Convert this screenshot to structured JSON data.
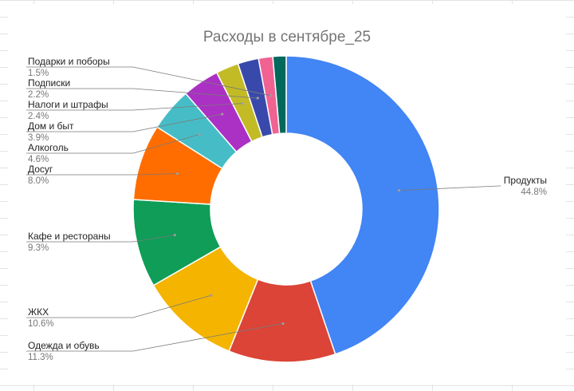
{
  "chart_data": {
    "type": "pie",
    "variant": "donut",
    "title": "Расходы в сентябре_25",
    "legend": "none",
    "slices": [
      {
        "label": "Продукты",
        "value": 44.8,
        "percent_label": "44.8%",
        "color": "#4285f4"
      },
      {
        "label": "Одежда и обувь",
        "value": 11.3,
        "percent_label": "11.3%",
        "color": "#db4437"
      },
      {
        "label": "ЖКХ",
        "value": 10.6,
        "percent_label": "10.6%",
        "color": "#f4b400"
      },
      {
        "label": "Кафе и рестораны",
        "value": 9.3,
        "percent_label": "9.3%",
        "color": "#0f9d58"
      },
      {
        "label": "Досуг",
        "value": 8.0,
        "percent_label": "8.0%",
        "color": "#ff6d01"
      },
      {
        "label": "Алкоголь",
        "value": 4.6,
        "percent_label": "4.6%",
        "color": "#46bdc6"
      },
      {
        "label": "Дом и быт",
        "value": 3.9,
        "percent_label": "3.9%",
        "color": "#ab30c4"
      },
      {
        "label": "Налоги и штрафы",
        "value": 2.4,
        "percent_label": "2.4%",
        "color": "#c2bb26"
      },
      {
        "label": "Подписки",
        "value": 2.2,
        "percent_label": "2.2%",
        "color": "#3949ab"
      },
      {
        "label": "Подарки и поборы",
        "value": 1.5,
        "percent_label": "1.5%",
        "color": "#f06292"
      },
      {
        "label": "",
        "value": 1.4,
        "percent_label": "",
        "color": "#00695c"
      }
    ]
  }
}
